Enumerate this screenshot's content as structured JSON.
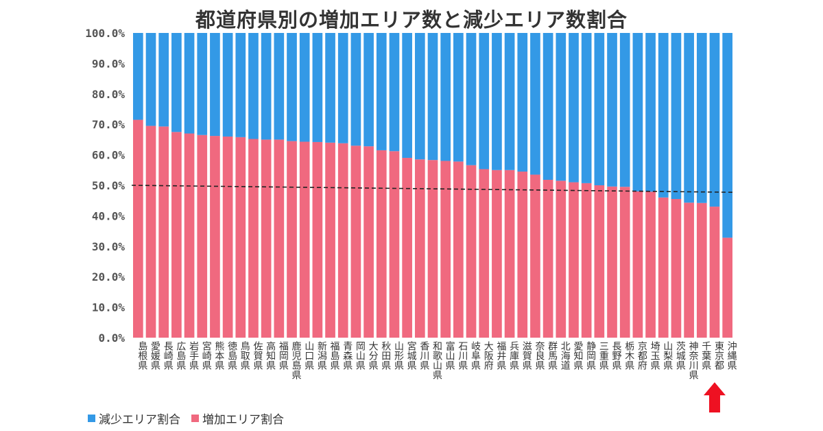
{
  "chart_data": {
    "type": "bar",
    "stacked": true,
    "title": "都道府県別の増加エリア数と減少エリア数割合",
    "xlabel": "",
    "ylabel": "",
    "ylim": [
      0,
      100
    ],
    "ytick_labels": [
      "0.0%",
      "10.0%",
      "20.0%",
      "30.0%",
      "40.0%",
      "50.0%",
      "60.0%",
      "70.0%",
      "80.0%",
      "90.0%",
      "100.0%"
    ],
    "ytick_values": [
      0,
      10,
      20,
      30,
      40,
      50,
      60,
      70,
      80,
      90,
      100
    ],
    "categories": [
      "島根県",
      "愛媛県",
      "長崎県",
      "広島県",
      "岩手県",
      "宮崎県",
      "熊本県",
      "徳島県",
      "鳥取県",
      "佐賀県",
      "高知県",
      "福岡県",
      "鹿児島県",
      "山口県",
      "新潟県",
      "福島県",
      "青森県",
      "岡山県",
      "大分県",
      "秋田県",
      "山形県",
      "宮城県",
      "香川県",
      "和歌山県",
      "富山県",
      "石川県",
      "岐阜県",
      "大阪府",
      "福井県",
      "兵庫県",
      "滋賀県",
      "奈良県",
      "群馬県",
      "北海道",
      "愛知県",
      "静岡県",
      "三重県",
      "長野県",
      "栃木県",
      "京都府",
      "埼玉県",
      "山梨県",
      "茨城県",
      "神奈川県",
      "千葉県",
      "東京都",
      "沖縄県"
    ],
    "series": [
      {
        "name": "増加エリア割合",
        "color": "#f0697f",
        "values": [
          71.5,
          69.5,
          69.3,
          67.5,
          67.0,
          66.5,
          66.2,
          66.0,
          65.8,
          65.2,
          65.0,
          65.0,
          64.5,
          64.3,
          64.2,
          64.0,
          63.8,
          63.0,
          62.8,
          61.5,
          61.2,
          59.0,
          58.5,
          58.3,
          58.0,
          57.8,
          56.6,
          55.3,
          55.0,
          55.0,
          54.5,
          53.5,
          51.8,
          51.5,
          51.0,
          50.7,
          50.0,
          49.6,
          49.5,
          48.0,
          47.9,
          46.0,
          45.5,
          44.3,
          44.2,
          43.0,
          32.8
        ]
      },
      {
        "name": "減少エリア割合",
        "color": "#3399e6",
        "values": [
          28.5,
          30.5,
          30.7,
          32.5,
          33.0,
          33.5,
          33.8,
          34.0,
          34.2,
          34.8,
          35.0,
          35.0,
          35.5,
          35.7,
          35.8,
          36.0,
          36.2,
          37.0,
          37.2,
          38.5,
          38.8,
          41.0,
          41.5,
          41.7,
          42.0,
          42.2,
          43.4,
          44.7,
          45.0,
          45.0,
          45.5,
          46.5,
          48.2,
          48.5,
          49.0,
          49.3,
          50.0,
          50.4,
          50.5,
          52.0,
          52.1,
          54.0,
          54.5,
          55.7,
          55.8,
          57.0,
          67.2
        ]
      }
    ],
    "trendline": {
      "style": "dashed",
      "color": "#222222",
      "start": 50.0,
      "end": 47.7
    },
    "highlight": {
      "category": "東京都",
      "marker": "red-up-arrow",
      "color": "#ee1122"
    },
    "grid": false,
    "legend": {
      "position": "bottom-left",
      "entries": [
        "減少エリア割合",
        "増加エリア割合"
      ]
    }
  }
}
